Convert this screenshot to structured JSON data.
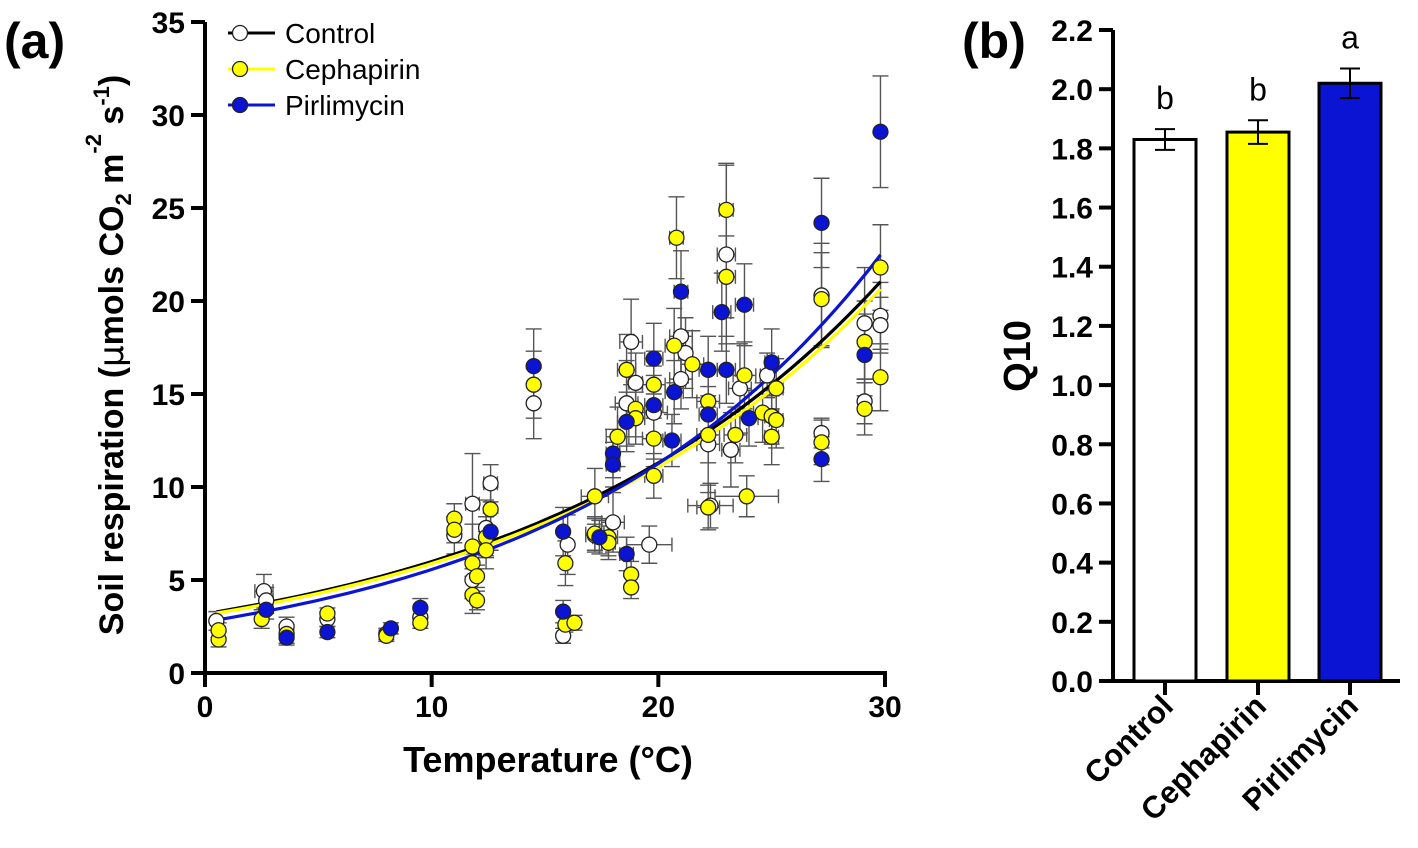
{
  "panels": {
    "a_label": "(a)",
    "b_label": "(b)"
  },
  "colors": {
    "control_fill": "#ffffff",
    "cephapirin": "#ffff00",
    "pirlimycin": "#0a14d2",
    "axis": "#000000",
    "errorbar": "#444444"
  },
  "legend": [
    {
      "name": "Control",
      "color": "#ffffff"
    },
    {
      "name": "Cephapirin",
      "color": "#ffff00"
    },
    {
      "name": "Pirlimycin",
      "color": "#0a14d2"
    }
  ],
  "chart_data": [
    {
      "type": "scatter",
      "panel": "(a)",
      "xlabel": "Temperature (°C)",
      "ylabel_parts": [
        "Soil respiration (",
        "μ",
        "mols CO",
        "2",
        " m",
        "-2",
        " s",
        "-1",
        ")"
      ],
      "xlim": [
        0,
        30
      ],
      "ylim": [
        0,
        35
      ],
      "xticks": [
        0,
        10,
        20,
        30
      ],
      "yticks": [
        0,
        5,
        10,
        15,
        20,
        25,
        30,
        35
      ],
      "legend_position": "top-left",
      "fits": [
        {
          "name": "Control",
          "color": "#000000",
          "a": 3.18,
          "b": 0.0634,
          "x_range": [
            0.5,
            29.8
          ]
        },
        {
          "name": "Cephapirin",
          "color": "#ffff00",
          "a": 3.12,
          "b": 0.0634,
          "x_range": [
            0.5,
            29.8
          ]
        },
        {
          "name": "Pirlimycin",
          "color": "#0a14d2",
          "a": 2.75,
          "b": 0.0705,
          "x_range": [
            0.5,
            29.8
          ]
        }
      ],
      "series": [
        {
          "name": "Control",
          "points": [
            [
              0.5,
              2.8,
              0.5,
              0
            ],
            [
              2.6,
              4.4,
              0.9,
              0.4
            ],
            [
              2.7,
              3.9,
              0.7,
              0.3
            ],
            [
              3.6,
              2.5,
              0.5,
              0
            ],
            [
              5.4,
              2.9,
              0.4,
              0
            ],
            [
              8.0,
              2.1,
              0.3,
              0
            ],
            [
              9.5,
              3.0,
              0.4,
              0
            ],
            [
              11.0,
              7.4,
              1.0,
              0
            ],
            [
              11.8,
              9.1,
              2.7,
              0.3
            ],
            [
              11.8,
              5.0,
              1.0,
              0
            ],
            [
              12.4,
              7.8,
              1.5,
              0
            ],
            [
              12.6,
              10.2,
              1.0,
              0.3
            ],
            [
              14.5,
              14.5,
              1.9,
              0
            ],
            [
              15.8,
              2.0,
              0.4,
              0
            ],
            [
              16.0,
              6.9,
              1.6,
              0
            ],
            [
              17.2,
              7.4,
              0.9,
              0.4
            ],
            [
              18.0,
              8.1,
              1.6,
              0.5
            ],
            [
              18.6,
              14.5,
              2.3,
              0.5
            ],
            [
              18.8,
              17.8,
              2.3,
              0.5
            ],
            [
              19.0,
              15.6,
              1.6,
              0.3
            ],
            [
              19.6,
              6.9,
              1.0,
              1.0
            ],
            [
              19.8,
              14.0,
              2.5,
              0.6
            ],
            [
              21.0,
              18.1,
              2.5,
              0.5
            ],
            [
              21.0,
              15.8,
              1.6,
              0.5
            ],
            [
              21.2,
              17.2,
              1.9,
              0.3
            ],
            [
              22.2,
              12.3,
              2.6,
              0.5
            ],
            [
              22.3,
              9.0,
              1.2,
              1.0
            ],
            [
              23.0,
              22.5,
              4.8,
              0.4
            ],
            [
              23.2,
              12.0,
              2.0,
              0.4
            ],
            [
              23.6,
              15.3,
              2.4,
              0.5
            ],
            [
              24.8,
              16.0,
              1.2,
              0.3
            ],
            [
              25.0,
              13.8,
              1.2,
              0.3
            ],
            [
              27.2,
              20.3,
              2.8,
              0
            ],
            [
              27.2,
              12.9,
              0.8,
              0
            ],
            [
              29.1,
              18.8,
              3.0,
              0
            ],
            [
              29.1,
              14.6,
              1.2,
              0
            ],
            [
              29.8,
              19.2,
              1.8,
              0
            ],
            [
              29.8,
              18.7,
              1.5,
              0
            ]
          ]
        },
        {
          "name": "Cephapirin",
          "points": [
            [
              0.6,
              1.8,
              0.4,
              0
            ],
            [
              0.6,
              2.3,
              0.4,
              0
            ],
            [
              2.5,
              2.9,
              0.5,
              0
            ],
            [
              3.6,
              2.1,
              0.5,
              0
            ],
            [
              5.4,
              3.2,
              0.3,
              0
            ],
            [
              8.0,
              2.0,
              0.3,
              0
            ],
            [
              9.5,
              2.7,
              0.3,
              0
            ],
            [
              11.0,
              8.3,
              0.8,
              0
            ],
            [
              11.0,
              7.7,
              0.7,
              0
            ],
            [
              11.8,
              6.8,
              1.2,
              0
            ],
            [
              11.8,
              5.9,
              0.9,
              0
            ],
            [
              11.8,
              4.2,
              1.0,
              0
            ],
            [
              12.0,
              5.2,
              0.6,
              0
            ],
            [
              12.0,
              3.9,
              0.5,
              0
            ],
            [
              12.4,
              7.3,
              1.1,
              0
            ],
            [
              12.4,
              6.6,
              1.0,
              0
            ],
            [
              12.6,
              8.8,
              1.2,
              0
            ],
            [
              14.5,
              15.5,
              1.8,
              0
            ],
            [
              15.9,
              2.6,
              0.4,
              0
            ],
            [
              15.9,
              5.9,
              1.2,
              0
            ],
            [
              16.3,
              2.7,
              0.4,
              0
            ],
            [
              17.2,
              9.5,
              1.5,
              0.6
            ],
            [
              17.2,
              7.5,
              0.9,
              0.4
            ],
            [
              17.8,
              7.3,
              1.0,
              0.4
            ],
            [
              17.8,
              7.0,
              0.9,
              0.3
            ],
            [
              18.2,
              12.7,
              1.6,
              0.5
            ],
            [
              18.6,
              16.3,
              1.9,
              0.4
            ],
            [
              18.8,
              5.3,
              0.7,
              0
            ],
            [
              18.8,
              4.6,
              0.6,
              0
            ],
            [
              19.0,
              14.2,
              1.5,
              0.4
            ],
            [
              19.0,
              13.7,
              1.4,
              0.4
            ],
            [
              19.8,
              15.5,
              1.8,
              0.5
            ],
            [
              19.8,
              12.6,
              1.5,
              0.5
            ],
            [
              19.8,
              10.6,
              1.2,
              0.4
            ],
            [
              20.7,
              17.6,
              2.0,
              0.4
            ],
            [
              20.8,
              23.4,
              2.2,
              0.3
            ],
            [
              21.5,
              16.6,
              1.8,
              0.5
            ],
            [
              22.2,
              12.8,
              1.5,
              0.5
            ],
            [
              22.2,
              14.6,
              1.6,
              0.5
            ],
            [
              22.2,
              8.9,
              1.2,
              0.5
            ],
            [
              23.0,
              24.9,
              2.5,
              0.3
            ],
            [
              23.0,
              21.3,
              2.2,
              0.4
            ],
            [
              23.4,
              12.8,
              1.5,
              0.5
            ],
            [
              23.8,
              16.0,
              1.8,
              0.5
            ],
            [
              23.9,
              9.5,
              1.1,
              1.4
            ],
            [
              24.6,
              14.0,
              1.6,
              0.4
            ],
            [
              25.0,
              12.7,
              1.5,
              0.3
            ],
            [
              25.0,
              13.8,
              1.5,
              0.3
            ],
            [
              25.2,
              15.3,
              1.6,
              0.3
            ],
            [
              25.2,
              13.6,
              1.5,
              0.3
            ],
            [
              27.2,
              20.1,
              2.5,
              0
            ],
            [
              27.2,
              12.4,
              1.2,
              0
            ],
            [
              29.1,
              17.8,
              2.2,
              0
            ],
            [
              29.1,
              14.2,
              1.4,
              0
            ],
            [
              29.8,
              21.8,
              2.3,
              0
            ],
            [
              29.8,
              15.9,
              1.8,
              0
            ]
          ]
        },
        {
          "name": "Pirlimycin",
          "points": [
            [
              2.7,
              3.4,
              0.5,
              0
            ],
            [
              3.6,
              1.9,
              0.4,
              0
            ],
            [
              5.4,
              2.2,
              0.3,
              0
            ],
            [
              8.2,
              2.4,
              0.3,
              0
            ],
            [
              9.5,
              3.5,
              0.5,
              0
            ],
            [
              12.6,
              7.6,
              1.0,
              0
            ],
            [
              14.5,
              16.5,
              2.0,
              0
            ],
            [
              15.8,
              7.6,
              1.3,
              0
            ],
            [
              15.8,
              3.3,
              0.6,
              0
            ],
            [
              17.4,
              7.3,
              0.9,
              0.3
            ],
            [
              18.0,
              11.8,
              1.3,
              0.3
            ],
            [
              18.0,
              11.2,
              1.2,
              0.3
            ],
            [
              18.6,
              6.4,
              0.9,
              0.3
            ],
            [
              18.6,
              13.5,
              1.6,
              0.4
            ],
            [
              19.8,
              14.4,
              1.6,
              0.4
            ],
            [
              19.8,
              16.9,
              1.9,
              0.4
            ],
            [
              20.6,
              12.5,
              1.4,
              0.4
            ],
            [
              20.7,
              15.1,
              1.7,
              0.4
            ],
            [
              21.0,
              20.5,
              2.2,
              0.3
            ],
            [
              22.2,
              13.9,
              1.5,
              0.4
            ],
            [
              22.2,
              16.3,
              1.8,
              0.4
            ],
            [
              22.8,
              19.4,
              2.1,
              0.4
            ],
            [
              23.0,
              16.3,
              1.8,
              0.4
            ],
            [
              23.8,
              19.8,
              2.2,
              0.4
            ],
            [
              24.0,
              13.7,
              1.5,
              0.4
            ],
            [
              25.0,
              16.7,
              1.8,
              0.3
            ],
            [
              27.2,
              24.2,
              2.4,
              0
            ],
            [
              27.2,
              11.5,
              1.2,
              0
            ],
            [
              29.1,
              17.1,
              2.2,
              0
            ],
            [
              29.8,
              29.1,
              3.0,
              0
            ]
          ]
        }
      ]
    },
    {
      "type": "bar",
      "panel": "(b)",
      "ylabel": "Q10",
      "ylim": [
        0,
        2.2
      ],
      "yticks": [
        "0.0",
        "0.2",
        "0.4",
        "0.6",
        "0.8",
        "1.0",
        "1.2",
        "1.4",
        "1.6",
        "1.8",
        "2.0",
        "2.2"
      ],
      "categories": [
        "Control",
        "Cephapirin",
        "Pirlimycin"
      ],
      "values": [
        1.83,
        1.855,
        2.02
      ],
      "errors": [
        0.035,
        0.04,
        0.05
      ],
      "colors": [
        "#ffffff",
        "#ffff00",
        "#0a14d2"
      ],
      "significance": [
        "b",
        "b",
        "a"
      ]
    }
  ]
}
